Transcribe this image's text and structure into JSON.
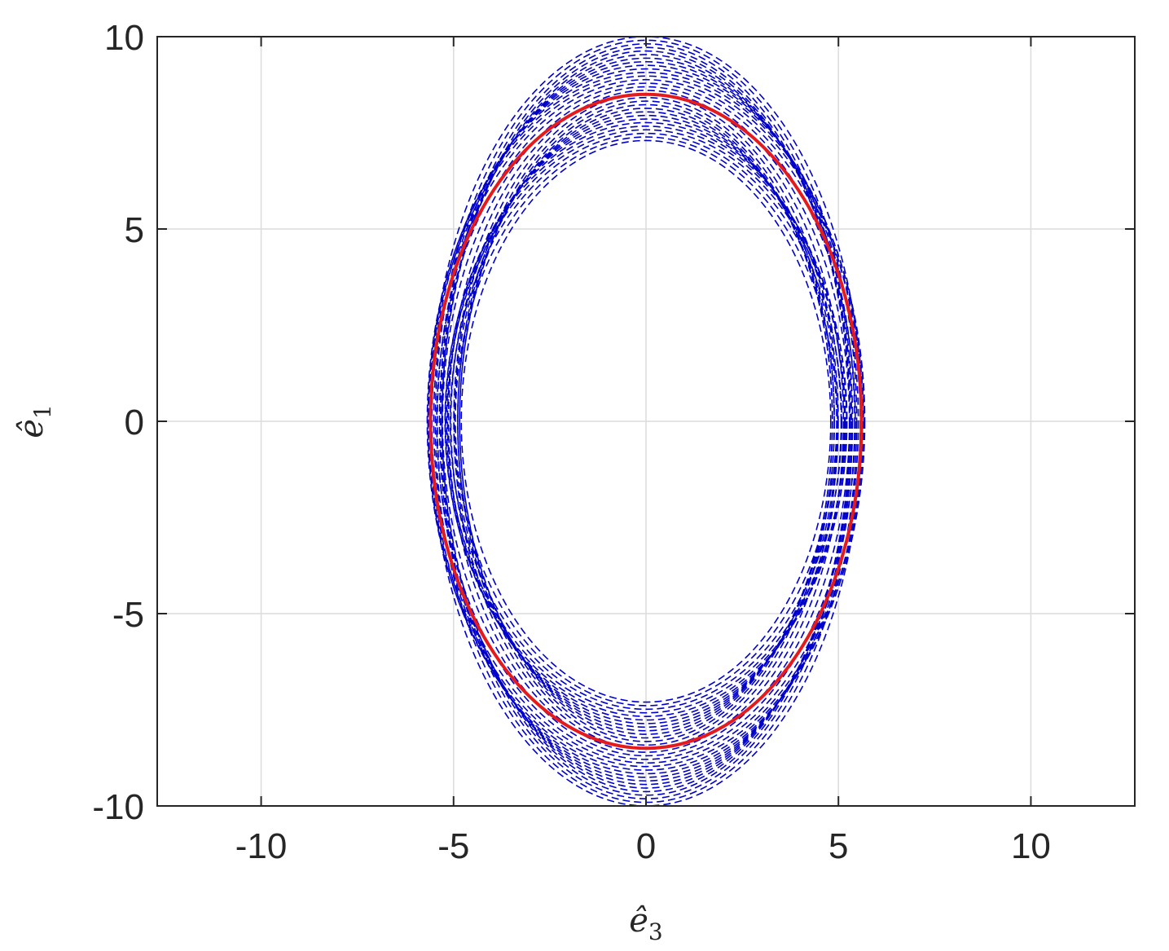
{
  "chart_data": {
    "type": "line",
    "title": "",
    "xlabel": {
      "base": "ê",
      "sub": "3"
    },
    "ylabel": {
      "base": "ê",
      "sub": "1"
    },
    "xlim": [
      -12.7,
      12.7
    ],
    "ylim": [
      -10,
      10
    ],
    "x_ticks": [
      -10,
      -5,
      0,
      5,
      10
    ],
    "y_ticks": [
      -10,
      -5,
      0,
      5,
      10
    ],
    "x_tick_labels": [
      "-10",
      "-5",
      "0",
      "5",
      "10"
    ],
    "y_tick_labels": [
      "-10",
      "-5",
      "0",
      "5",
      "10"
    ],
    "grid": true,
    "legend": "none",
    "series": [
      {
        "style": "solid",
        "color": "#e41a1c",
        "shape": "ellipse",
        "center": [
          0,
          0
        ],
        "semi_axis_x": 5.6,
        "semi_axis_y": 8.5
      },
      {
        "style": "dashed",
        "color": "#0000cc",
        "shape": "ellipse_family",
        "center": [
          0,
          0
        ],
        "semi_axis_x_range": [
          4.5,
          6.0
        ],
        "semi_axis_y_range": [
          7.3,
          10.0
        ],
        "curve_count": 30
      }
    ]
  }
}
